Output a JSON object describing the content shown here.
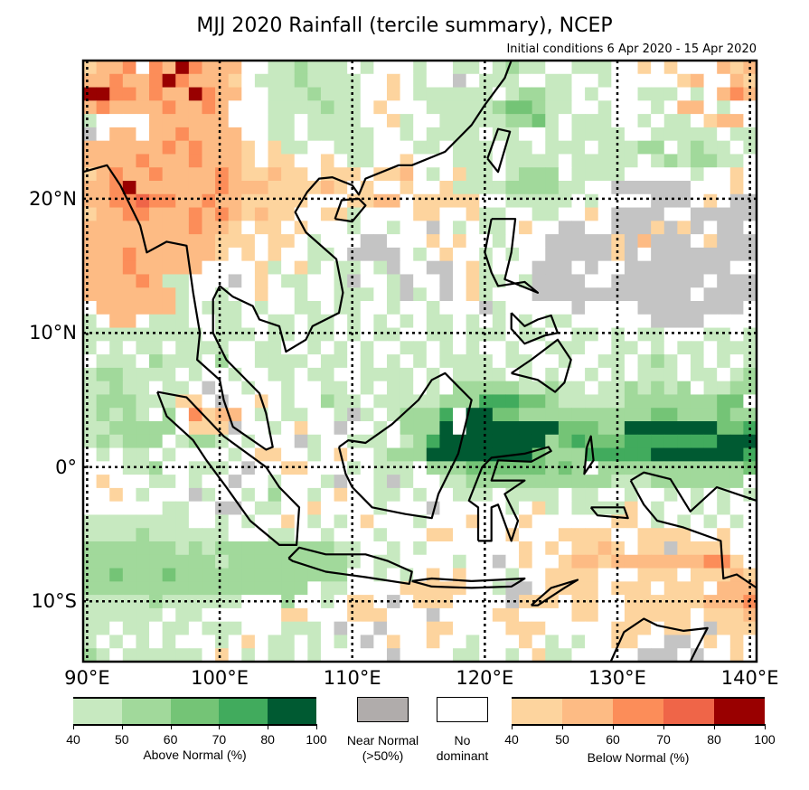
{
  "title": "MJJ 2020 Rainfall (tercile summary), NCEP",
  "subtitle": "Initial conditions 6 Apr 2020 - 15 Apr 2020",
  "axes": {
    "lon_labels": [
      "90°E",
      "100°E",
      "110°E",
      "120°E",
      "130°E",
      "140°E"
    ],
    "lon_values": [
      90,
      100,
      110,
      120,
      130,
      140
    ],
    "lat_labels": [
      "20°N",
      "10°N",
      "0°",
      "10°S"
    ],
    "lat_values": [
      20,
      10,
      0,
      -10
    ],
    "lon_range": [
      89.7,
      140.5
    ],
    "lat_range": [
      -14.5,
      30.3
    ]
  },
  "legend": {
    "above": {
      "label": "Above Normal (%)",
      "ticks": [
        "40",
        "50",
        "60",
        "70",
        "80",
        "100"
      ],
      "colors": [
        "#c7e9c0",
        "#a1d99b",
        "#74c476",
        "#41ab5d",
        "#005a32"
      ]
    },
    "near": {
      "label_line1": "Near Normal",
      "label_line2": "(>50%)",
      "color": "#b0acab"
    },
    "none": {
      "label_line1": "No",
      "label_line2": "dominant",
      "color": "#ffffff"
    },
    "below": {
      "label": "Below Normal (%)",
      "ticks": [
        "40",
        "50",
        "60",
        "70",
        "80",
        "100"
      ],
      "colors": [
        "#fdd49e",
        "#fdbb84",
        "#fc8d59",
        "#ef6548",
        "#990000"
      ]
    }
  },
  "map_data": {
    "type": "heatmap",
    "cell_degrees": 1,
    "codes": {
      ".": "no dominant",
      "n": "near normal",
      "1": "above 40-50",
      "2": "above 50-60",
      "3": "above 60-70",
      "4": "above 70-80",
      "5": "above 80-100",
      "a": "below 40-50",
      "b": "below 50-60",
      "c": "below 60-70",
      "d": "below 70-80",
      "e": "below 80-100"
    },
    "code_colors": {
      ".": "#ffffff",
      "n": "#c4c4c4",
      "1": "#c7e9c0",
      "2": "#a1d99b",
      "3": "#74c476",
      "4": "#41ab5d",
      "5": "#005a32",
      "a": "#fdd49e",
      "b": "#fdbb84",
      "c": "#fc8d59",
      "d": "#ef6548",
      "e": "#990000"
    },
    "rows_north_to_south": [
      "abbc.cbecbbb..112111.1...1..11.1211..111..a.a...bab",
      "bbcbbcecbbba.1112111 1..a.1..n.111..11..1.....ab..ba",
      "eeccbcbbecbb..1112111..a.111111.12211.1...111.1.bcb",
      "bcbbbbcbbcb...1111211.a...11111233211..1...1.bb.1.",
      "1....bbbbbb...11.1111..a1..111112231.111..1.11.abb.",
      "n.bb.bbcbbbb..11.11111..1.1111.11..1.1111..11111.11",
      "bbbbbbcbcbbba.a11..111...11.111.11.111.11122.1211.1",
      "bbbbcbbbcbbba.aa..a.11..a...111.1111.11111.1212211.",
      "abcbbcbbbbcbaabaa.aaa.aab.1.a11.1222.1111.....1..a.",
      "bbcebbbbbbcbbbaaaaba.a..a..a1111222211..nnnnnn...a.",
      "bbccdccbbcbbaaaaa...aabb.aaaaa..11111.1....nnn.a.nn",
      "abbccbbbcbcbabaa..aa1....aa..a11..11..a.nnnn..nnnnn",
      "bbbbbbbbcbba.aa.a...1..1..n.1.11.a..nn..nnnanan.nn.",
      "bbbbbbbbbbaaa.aa.1...nn...a.a..1...nnnnnanbnnn.annn",
      "bbbcbbbbbba.a.a..11.nnnn.1.a..1.1..nnnnnan.nnnnnnnn",
      "bbbcbbbbb....a1.a1.11.1n..nn.a1...nnn.n..nnnnnnnn..",
      "bbbbcb11...n.a.11..1n..1n..n.a11.1nnnn..nnnnnnn.nnn",
      "bbbbbbb1..1..a..1..111.1n1.n.a1...nnnnnnnnnnnn.nnnn",
      ".bbbbbb1.111.1..11.11..1..1...n1.....n....nnnnnnnn.",
      "1.bb.111..11..11.11.1.1.1.11.1.1.1.11......nnnn....",
      "111111111.111.11.11.1.11..11.111.11..11.1.11...11.1",
      "1.1.11.1111..11..1.1.1..11.1.1..1..111..11.1.11.111",
      ".111.2111.2..1111.11.1.1.1.1111.11..1..11.121.1.1.1",
      "1221111.1..1..11.11..1111.1.1111.1.1..1.1.111.11.12",
      "11211.11.n..1..1..11.1.11.1.2222211211.1121212.1122",
      "1222111aa.n..a.1..211.111112224443321111122222223 3",
      "12121.2.cabb.1.11..1n1.12224.553322222222223322232 2",
      "1122222.aaan..1.a..n..1.2225.555555533322555555533 44",
      "121222.1221.1...n1..111.124555555552343334444444555",
      ".1.11.1....1.aa..1.a..122255555555322244444555555 54",
      "...112..111.n..aa...1.111.2223333332 32.22222222222 3",
      ".a...11.1..n..1...1n..1n1..1122222222222111222222 2",
      "..a.1...n1..1.2..1.a..11.1..111.1111.11..1..1.1.1.1",
      "......11..nn.11..a....1...n.....1.a1.1111a.1..1.1..",
      "11111111..1.1..a.1.1.a...1...a...a......aa.1.1.1.1.",
      "11112111111...11..1...1...aa....a...aaaa..aaaa..a..",
      "22222221212222222221 1..1.1.......a.a.aaba.aanaaaa..",
      "22222222221222222222 1.11....1..n.a..abbabbbbbbbcca.",
      "22322232222222222222..1.1.a.a...1..aaaa...aaa.aaaba",
      "22222222222222222.11....aaaaa..1nn.aaaa.aaa.aaa.bbb",
      "111112111111...2..1.aa.n.aaa....naaa.aa..aaaaaabbbc",
      "111111.11......aa...aaa...n....aa....aa..aaaaa.aaab",
      "11.11.11.111...111.n..n...aa....aaa.....aaa.aa.naaa",
      "1.1.1.1...1.a.11.1.1.n.a..a..1...a.1.1..aa..nn.a.a.",
      "21.111111.a.1.11.1.....n....11..1.a11.....nnn.n..a."
    ]
  }
}
